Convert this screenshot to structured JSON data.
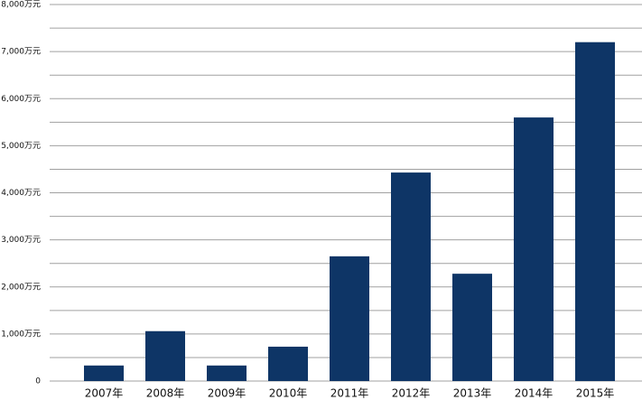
{
  "chart_data": {
    "type": "bar",
    "categories": [
      "2007年",
      "2008年",
      "2009年",
      "2010年",
      "2011年",
      "2012年",
      "2013年",
      "2014年",
      "2015年"
    ],
    "values": [
      330,
      1060,
      330,
      730,
      2650,
      4430,
      2280,
      5600,
      7200
    ],
    "color": "#0e3566",
    "ylim": [
      0,
      8000
    ],
    "yticks": [
      0,
      {
        "value": 1000,
        "label": "1,000万元"
      },
      {
        "value": 2000,
        "label": "2,000万元"
      },
      {
        "value": 3000,
        "label": "3,000万元"
      },
      {
        "value": 4000,
        "label": "4,000万元"
      },
      {
        "value": 5000,
        "label": "5,000万元"
      },
      {
        "value": 6000,
        "label": "6,000万元"
      },
      {
        "value": 7000,
        "label": "7,000万元"
      },
      {
        "value": 8000,
        "label": "8,000万元"
      }
    ],
    "minor_yticks": [
      500,
      1500,
      2500,
      3500,
      4500,
      5500,
      6500,
      7500
    ],
    "grid": true
  }
}
